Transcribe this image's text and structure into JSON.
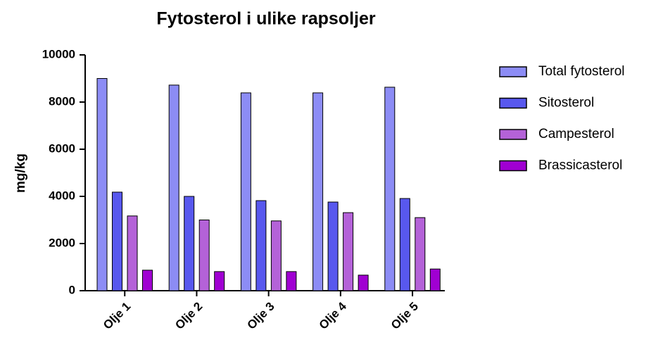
{
  "chart_data": {
    "type": "bar",
    "title": "Fytosterol i ulike rapsoljer",
    "y_label": "mg/kg",
    "categories": [
      "Olje 1",
      "Olje 2",
      "Olje 3",
      "Olje 4",
      "Olje 5"
    ],
    "series": [
      {
        "name": "Total fytosterol",
        "color": "#8c8cf5",
        "values": [
          9000,
          8720,
          8390,
          8390,
          8630
        ]
      },
      {
        "name": "Sitosterol",
        "color": "#5858ee",
        "values": [
          4180,
          4000,
          3820,
          3760,
          3910
        ]
      },
      {
        "name": "Campesterol",
        "color": "#b462d8",
        "values": [
          3170,
          3000,
          2960,
          3310,
          3100
        ]
      },
      {
        "name": "Brassicasterol",
        "color": "#a000d2",
        "values": [
          870,
          810,
          810,
          660,
          920
        ]
      }
    ],
    "ylim": [
      0,
      10000
    ],
    "yticks": [
      0,
      2000,
      4000,
      6000,
      8000,
      10000
    ],
    "legend": "right"
  }
}
